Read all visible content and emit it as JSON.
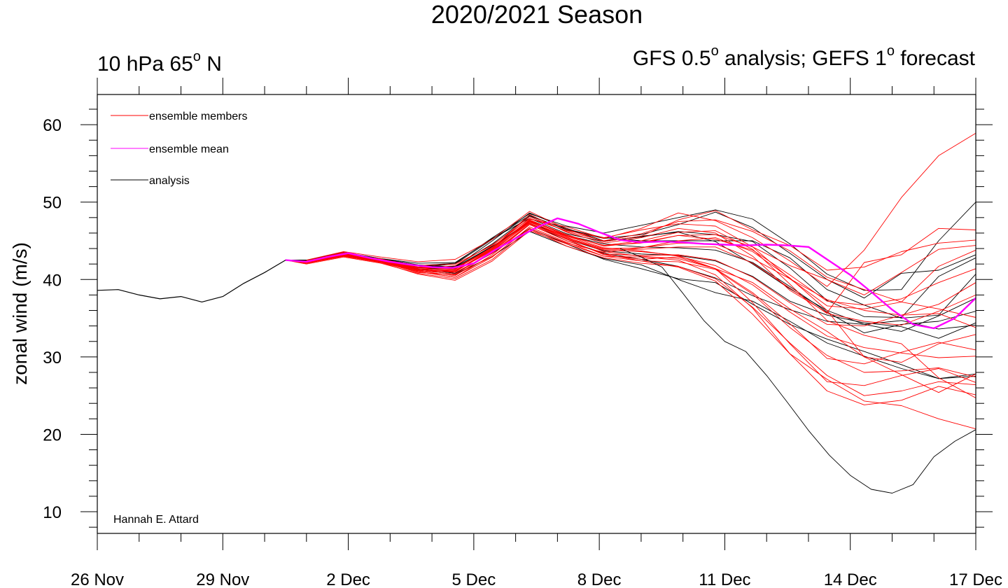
{
  "chart_data": {
    "type": "line",
    "title": "2020/2021 Season",
    "left_subtitle": {
      "text": "10 hPa 65",
      "sup": "o",
      "tail": " N"
    },
    "right_subtitle": {
      "pre": "GFS 0.5",
      "sup1": "o",
      "mid": " analysis; GEFS 1",
      "sup2": "o",
      "tail": " forecast"
    },
    "ylabel": "zonal wind (m/s)",
    "xlabel": "",
    "xlim": [
      0,
      21
    ],
    "ylim": [
      7.2,
      63.9
    ],
    "x_ticks": [
      0,
      3,
      6,
      9,
      12,
      15,
      18,
      21
    ],
    "x_tick_labels": [
      "26 Nov",
      "29 Nov",
      "2 Dec",
      "5 Dec",
      "8 Dec",
      "11 Dec",
      "14 Dec",
      "17 Dec"
    ],
    "y_ticks": [
      10,
      20,
      30,
      40,
      50,
      60
    ],
    "y_tick_labels": [
      "10",
      "20",
      "30",
      "40",
      "50",
      "60"
    ],
    "grid": false,
    "legend_position": "top-left",
    "legend": [
      {
        "label": "ensemble members",
        "color": "#ff0000"
      },
      {
        "label": "ensemble mean",
        "color": "#ff00ff"
      },
      {
        "label": "analysis",
        "color": "#000000"
      }
    ],
    "credit": "Hannah E. Attard",
    "colors": {
      "members": "#ff0000",
      "mean": "#ff00ff",
      "analysis": "#000000"
    },
    "observed_analysis": {
      "x": [
        0,
        0.5,
        1,
        1.5,
        2,
        2.5,
        3,
        3.5,
        4,
        4.5,
        5
      ],
      "y": [
        38.6,
        38.7,
        38.0,
        37.5,
        37.8,
        37.1,
        37.8,
        39.5,
        40.9,
        42.5,
        42.5
      ]
    },
    "ensemble_mean": {
      "x": [
        4.5,
        5,
        5.5,
        6,
        6.5,
        7,
        7.5,
        8,
        8.5,
        9,
        9.5,
        10,
        10.5,
        11,
        11.5,
        12,
        12.5,
        13,
        13.5,
        14,
        14.5,
        15,
        15.5,
        16,
        16.5,
        17,
        17.5,
        18,
        18.5,
        19,
        19.5,
        20,
        20.5,
        21
      ],
      "y": [
        42.5,
        42.3,
        42.9,
        43.4,
        42.8,
        42.3,
        41.9,
        41.6,
        41.5,
        42.1,
        43.8,
        45.3,
        46.7,
        47.9,
        47.2,
        46.1,
        45.1,
        44.8,
        44.9,
        44.8,
        44.6,
        44.5,
        44.4,
        44.5,
        44.4,
        44.2,
        42.4,
        40.6,
        38.4,
        36.1,
        34.2,
        33.7,
        35.0,
        37.6
      ]
    },
    "forecast_start_x": 4.5,
    "forecast_end_x": 21,
    "forecast_start_y": 42.5,
    "ensemble_members": [
      {
        "y": [
          42.4,
          43.5,
          42.5,
          41.3,
          41.8,
          44.5,
          47.8,
          46.8,
          45.3,
          46.6,
          48.6,
          47.6,
          45.4,
          42.4,
          39.1,
          43.8,
          50.6,
          56.0,
          58.9
        ]
      },
      {
        "y": [
          42.2,
          43.2,
          42.7,
          41.1,
          41.0,
          44.0,
          48.4,
          46.1,
          44.7,
          45.4,
          46.6,
          46.0,
          43.0,
          38.6,
          35.7,
          42.2,
          43.2,
          46.6,
          46.4
        ]
      },
      {
        "y": [
          42.5,
          43.6,
          42.9,
          42.3,
          42.6,
          45.2,
          48.8,
          46.5,
          44.9,
          45.6,
          47.7,
          48.9,
          46.4,
          44.4,
          41.2,
          41.6,
          43.6,
          44.7,
          45.1
        ]
      },
      {
        "y": [
          42.3,
          43.3,
          42.4,
          41.6,
          41.4,
          44.0,
          47.7,
          45.8,
          44.3,
          44.8,
          45.7,
          45.8,
          44.2,
          41.8,
          40.0,
          38.0,
          40.9,
          43.9,
          44.4
        ]
      },
      {
        "y": [
          42.4,
          43.4,
          42.6,
          41.8,
          42.0,
          44.4,
          48.1,
          46.2,
          45.0,
          45.9,
          47.5,
          47.7,
          46.2,
          43.7,
          40.3,
          38.7,
          37.1,
          41.7,
          43.8
        ]
      },
      {
        "y": [
          42.3,
          43.2,
          42.4,
          41.5,
          41.5,
          44.1,
          47.6,
          45.7,
          44.4,
          44.7,
          45.7,
          45.2,
          43.8,
          40.6,
          37.2,
          36.7,
          37.5,
          39.6,
          41.4
        ]
      },
      {
        "y": [
          42.2,
          43.1,
          42.3,
          41.2,
          40.7,
          43.6,
          47.5,
          45.4,
          44.0,
          44.1,
          44.7,
          44.6,
          42.7,
          40.1,
          37.4,
          36.0,
          35.4,
          36.8,
          39.6
        ]
      },
      {
        "y": [
          42.4,
          43.3,
          42.6,
          41.4,
          41.2,
          43.8,
          47.3,
          45.3,
          43.9,
          43.9,
          44.2,
          44.2,
          42.1,
          38.9,
          35.6,
          34.6,
          34.1,
          35.9,
          38.0
        ]
      },
      {
        "y": [
          42.3,
          43.4,
          42.5,
          41.6,
          41.3,
          44.2,
          47.9,
          46.3,
          45.4,
          46.4,
          47.2,
          46.9,
          44.2,
          40.1,
          36.6,
          36.2,
          37.1,
          36.2,
          35.1
        ]
      },
      {
        "y": [
          42.1,
          43.0,
          42.3,
          41.0,
          40.3,
          43.2,
          47.1,
          45.0,
          43.3,
          43.1,
          43.2,
          42.5,
          40.3,
          37.0,
          34.2,
          34.0,
          35.4,
          35.6,
          33.8
        ]
      },
      {
        "y": [
          42.3,
          43.2,
          42.4,
          41.3,
          41.0,
          43.9,
          47.5,
          45.5,
          43.6,
          43.0,
          42.7,
          41.4,
          39.6,
          36.2,
          33.3,
          30.0,
          29.3,
          31.7,
          32.9
        ]
      },
      {
        "y": [
          42.2,
          43.1,
          42.3,
          41.1,
          40.5,
          43.5,
          47.2,
          45.2,
          43.2,
          42.6,
          42.9,
          41.4,
          38.3,
          34.3,
          29.8,
          29.1,
          30.6,
          31.9,
          30.9
        ]
      },
      {
        "y": [
          42.2,
          43.3,
          42.5,
          41.4,
          41.1,
          44.0,
          47.7,
          45.6,
          44.1,
          43.7,
          43.0,
          41.8,
          39.3,
          35.8,
          32.7,
          31.2,
          30.5,
          29.9,
          30.1
        ]
      },
      {
        "y": [
          42.1,
          43.0,
          42.2,
          41.0,
          40.3,
          42.9,
          46.8,
          44.8,
          43.0,
          42.4,
          42.3,
          41.3,
          38.1,
          33.8,
          30.2,
          28.0,
          28.2,
          28.6,
          27.4
        ]
      },
      {
        "y": [
          42.3,
          43.4,
          42.6,
          41.6,
          41.4,
          44.0,
          47.6,
          45.2,
          43.8,
          43.6,
          43.1,
          41.4,
          37.0,
          31.7,
          26.8,
          26.3,
          27.6,
          28.5,
          26.7
        ]
      },
      {
        "y": [
          42.0,
          42.9,
          42.1,
          40.8,
          40.1,
          42.6,
          46.5,
          44.3,
          42.8,
          42.1,
          41.7,
          40.1,
          36.4,
          31.8,
          27.6,
          25.0,
          25.6,
          26.8,
          26.4
        ]
      },
      {
        "y": [
          42.1,
          43.0,
          42.2,
          40.7,
          39.9,
          42.4,
          46.3,
          44.6,
          43.0,
          42.9,
          42.5,
          40.6,
          36.3,
          30.4,
          25.6,
          23.8,
          24.4,
          26.2,
          25.1
        ]
      },
      {
        "y": [
          42.2,
          43.1,
          42.3,
          41.3,
          40.9,
          43.4,
          47.1,
          45.0,
          43.3,
          42.4,
          41.6,
          39.8,
          35.5,
          30.4,
          27.1,
          24.3,
          23.7,
          22.0,
          20.7
        ]
      },
      {
        "y": [
          42.2,
          43.0,
          42.3,
          40.9,
          40.6,
          43.0,
          46.6,
          44.7,
          43.5,
          44.1,
          45.0,
          45.4,
          43.6,
          40.2,
          36.0,
          30.0,
          27.7,
          25.4,
          27.8
        ]
      },
      {
        "y": [
          42.3,
          43.2,
          42.5,
          41.1,
          41.1,
          43.7,
          47.4,
          45.6,
          44.4,
          45.0,
          46.1,
          46.3,
          43.9,
          39.4,
          34.7,
          32.8,
          31.7,
          27.3,
          24.7
        ]
      }
    ],
    "analysis_members": [
      {
        "y": [
          42.3,
          43.4,
          42.6,
          41.8,
          42.1,
          45.4,
          48.5,
          46.9,
          46.0,
          47.0,
          48.0,
          49.0,
          47.8,
          44.6,
          40.7,
          38.6,
          38.7,
          45.0,
          50.0
        ]
      },
      {
        "y": [
          42.4,
          43.4,
          42.6,
          41.6,
          42.0,
          45.2,
          48.3,
          46.4,
          45.3,
          45.8,
          47.1,
          48.7,
          46.7,
          43.4,
          40.0,
          37.6,
          40.8,
          41.2,
          43.2
        ]
      },
      {
        "y": [
          42.5,
          43.5,
          42.7,
          41.9,
          41.6,
          45.0,
          48.6,
          46.6,
          45.0,
          45.5,
          46.2,
          45.8,
          44.9,
          41.5,
          37.3,
          35.2,
          35.1,
          40.4,
          42.8
        ]
      },
      {
        "y": [
          42.2,
          43.2,
          42.4,
          41.5,
          41.7,
          44.6,
          48.2,
          46.5,
          45.4,
          45.0,
          45.0,
          45.0,
          45.0,
          42.8,
          38.7,
          36.7,
          35.0,
          35.4,
          40.7
        ]
      },
      {
        "y": [
          42.4,
          43.5,
          42.7,
          42.1,
          42.2,
          45.3,
          47.9,
          45.9,
          44.9,
          45.6,
          46.1,
          44.9,
          42.0,
          38.8,
          36.0,
          34.2,
          33.3,
          35.3,
          37.6
        ]
      },
      {
        "y": [
          42.3,
          43.3,
          42.5,
          41.8,
          41.5,
          44.2,
          47.6,
          45.7,
          44.6,
          44.2,
          44.1,
          43.8,
          42.2,
          39.1,
          35.8,
          33.1,
          34.2,
          34.6,
          35.9
        ]
      },
      {
        "y": [
          42.2,
          43.2,
          42.4,
          41.4,
          41.4,
          44.2,
          47.5,
          45.2,
          43.7,
          43.3,
          43.1,
          42.4,
          40.4,
          37.2,
          35.4,
          34.4,
          33.9,
          32.4,
          34.4
        ]
      },
      {
        "y": [
          42.4,
          43.3,
          42.6,
          41.8,
          41.6,
          44.3,
          47.3,
          45.0,
          43.4,
          42.6,
          41.7,
          40.2,
          37.9,
          36.1,
          34.6,
          34.2,
          34.7,
          33.6,
          34.1
        ]
      },
      {
        "y": [
          42.3,
          43.2,
          42.4,
          41.4,
          40.8,
          43.4,
          46.6,
          44.6,
          42.6,
          41.4,
          40.1,
          39.6,
          36.8,
          34.2,
          32.3,
          30.7,
          29.0,
          27.2,
          27.8
        ]
      },
      {
        "y": [
          42.2,
          43.1,
          42.3,
          41.2,
          40.7,
          43.0,
          46.2,
          44.3,
          42.7,
          41.9,
          40.0,
          38.3,
          37.2,
          34.6,
          31.8,
          30.1,
          28.5,
          27.2,
          27.5
        ]
      }
    ],
    "hindcast_outlier": {
      "x": [
        12.5,
        13,
        13.5,
        14,
        14.5,
        15,
        15.5,
        16,
        16.5,
        17,
        17.5,
        18,
        18.5,
        19,
        19.5,
        20,
        20.5,
        21
      ],
      "y": [
        44.0,
        42.9,
        41.6,
        38.2,
        34.7,
        32.0,
        30.7,
        27.6,
        24.1,
        20.5,
        17.3,
        14.7,
        12.9,
        12.4,
        13.5,
        17.1,
        19.1,
        20.6
      ]
    }
  }
}
